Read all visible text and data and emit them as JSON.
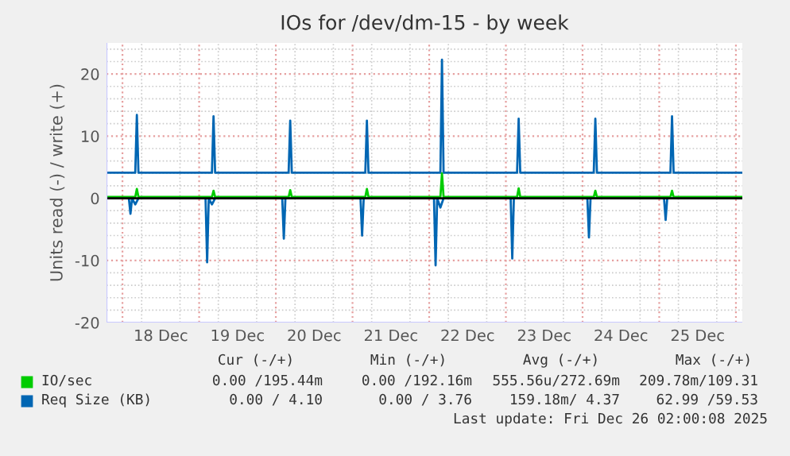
{
  "chart_data": {
    "type": "line",
    "title": "IOs for /dev/dm-15 - by week",
    "ylabel": "Units read (-) / write (+)",
    "xlim": [
      "2025-12-17T19:00",
      "2025-12-26T02:00"
    ],
    "xticks": [
      {
        "value": "2025-12-18T00:00",
        "label": null
      },
      {
        "value": "2025-12-18T12:00",
        "label": "18 Dec"
      },
      {
        "value": "2025-12-19T00:00",
        "label": null
      },
      {
        "value": "2025-12-19T12:00",
        "label": "19 Dec"
      },
      {
        "value": "2025-12-20T00:00",
        "label": null
      },
      {
        "value": "2025-12-20T12:00",
        "label": "20 Dec"
      },
      {
        "value": "2025-12-21T00:00",
        "label": null
      },
      {
        "value": "2025-12-21T12:00",
        "label": "21 Dec"
      },
      {
        "value": "2025-12-22T00:00",
        "label": null
      },
      {
        "value": "2025-12-22T12:00",
        "label": "22 Dec"
      },
      {
        "value": "2025-12-23T00:00",
        "label": null
      },
      {
        "value": "2025-12-23T12:00",
        "label": "23 Dec"
      },
      {
        "value": "2025-12-24T00:00",
        "label": null
      },
      {
        "value": "2025-12-24T12:00",
        "label": "24 Dec"
      },
      {
        "value": "2025-12-25T00:00",
        "label": null
      },
      {
        "value": "2025-12-25T12:00",
        "label": "25 Dec"
      },
      {
        "value": "2025-12-26T00:00",
        "label": null
      }
    ],
    "ylim": [
      -20,
      25
    ],
    "yticks": [
      -20,
      -10,
      0,
      10,
      20
    ],
    "grid": true,
    "legend": "bottom",
    "ref_lines": [
      {
        "axis": "y",
        "value": 0,
        "color": "#000000"
      }
    ],
    "series": [
      {
        "name": "Req Size (KB)",
        "color": "#0066b3",
        "x": [
          "2025-12-17T19:00",
          "2025-12-18T04:00",
          "2025-12-18T04:30",
          "2025-12-18T05:00",
          "2025-12-19T04:00",
          "2025-12-19T04:30",
          "2025-12-19T05:00",
          "2025-12-20T04:00",
          "2025-12-20T04:30",
          "2025-12-20T05:00",
          "2025-12-21T04:00",
          "2025-12-21T04:30",
          "2025-12-21T05:00",
          "2025-12-22T03:30",
          "2025-12-22T04:00",
          "2025-12-22T04:30",
          "2025-12-23T03:30",
          "2025-12-23T04:00",
          "2025-12-23T04:30",
          "2025-12-24T03:30",
          "2025-12-24T04:00",
          "2025-12-24T04:30",
          "2025-12-25T03:30",
          "2025-12-25T04:00",
          "2025-12-25T04:30",
          "2025-12-26T02:00"
        ],
        "values": [
          4.1,
          4.1,
          13.4,
          4.1,
          4.1,
          13.2,
          4.1,
          4.1,
          12.5,
          4.1,
          4.1,
          12.5,
          4.1,
          4.1,
          22.3,
          4.1,
          4.1,
          12.8,
          4.1,
          4.1,
          12.8,
          4.1,
          4.1,
          13.2,
          4.1,
          4.1
        ]
      },
      {
        "color": "#0066b3",
        "x": [
          "2025-12-17T19:00",
          "2025-12-18T02:00",
          "2025-12-18T02:30",
          "2025-12-18T03:00",
          "2025-12-18T04:00",
          "2025-12-18T05:00",
          "2025-12-19T02:00",
          "2025-12-19T02:30",
          "2025-12-19T03:00",
          "2025-12-19T04:00",
          "2025-12-19T05:00",
          "2025-12-20T02:00",
          "2025-12-20T02:30",
          "2025-12-20T03:00",
          "2025-12-21T02:30",
          "2025-12-21T03:00",
          "2025-12-21T03:30",
          "2025-12-22T01:30",
          "2025-12-22T02:00",
          "2025-12-22T02:30",
          "2025-12-22T03:30",
          "2025-12-22T04:30",
          "2025-12-23T01:30",
          "2025-12-23T02:00",
          "2025-12-23T02:30",
          "2025-12-24T01:30",
          "2025-12-24T02:00",
          "2025-12-24T02:30",
          "2025-12-25T01:30",
          "2025-12-25T02:00",
          "2025-12-25T02:30",
          "2025-12-26T02:00"
        ],
        "values": [
          0,
          0,
          -2.5,
          0,
          -1,
          0,
          0,
          -10.3,
          0,
          -1,
          0,
          0,
          -6.5,
          0,
          0,
          -6,
          0,
          0,
          -10.8,
          0,
          -1.5,
          0,
          0,
          -9.7,
          0,
          0,
          -6.3,
          0,
          0,
          -3.5,
          0,
          0
        ]
      },
      {
        "name": "IO/sec",
        "color": "#00cc00",
        "x": [
          "2025-12-17T19:00",
          "2025-12-18T04:00",
          "2025-12-18T04:30",
          "2025-12-18T05:00",
          "2025-12-19T04:00",
          "2025-12-19T04:30",
          "2025-12-19T05:00",
          "2025-12-20T04:00",
          "2025-12-20T04:30",
          "2025-12-20T05:00",
          "2025-12-21T04:00",
          "2025-12-21T04:30",
          "2025-12-21T05:00",
          "2025-12-22T03:30",
          "2025-12-22T04:00",
          "2025-12-22T04:30",
          "2025-12-23T03:30",
          "2025-12-23T04:00",
          "2025-12-23T04:30",
          "2025-12-24T03:30",
          "2025-12-24T04:00",
          "2025-12-24T04:30",
          "2025-12-25T03:30",
          "2025-12-25T04:00",
          "2025-12-25T04:30",
          "2025-12-26T02:00"
        ],
        "values": [
          0.2,
          0.2,
          1.5,
          0.2,
          0.2,
          1.2,
          0.2,
          0.2,
          1.3,
          0.2,
          0.2,
          1.5,
          0.2,
          0.2,
          4,
          0.2,
          0.2,
          1.6,
          0.2,
          0.2,
          1.2,
          0.2,
          0.2,
          1.2,
          0.2,
          0.2
        ]
      }
    ],
    "annotations": [
      "Cur (-/+)",
      "Min (-/+)",
      "Avg (-/+)",
      "Max (-/+)",
      "0.00 /195.44m",
      "0.00 /192.16m",
      "555.56u/272.69m",
      "209.78m/109.31",
      "0.00 / 4.10",
      "0.00 / 3.76",
      "159.18m/ 4.37",
      "62.99 /59.53",
      "Last update: Fri Dec 26 02:00:08 2025"
    ]
  }
}
